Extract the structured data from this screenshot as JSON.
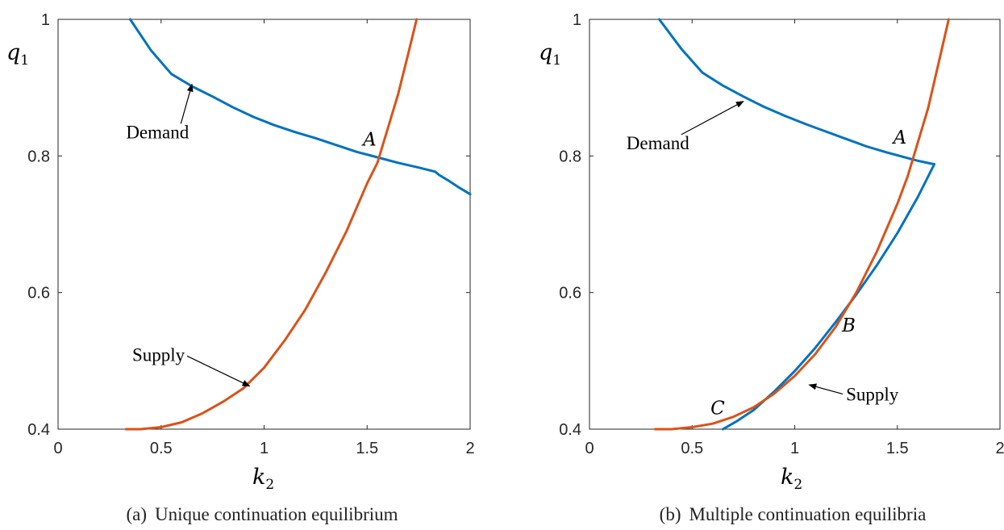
{
  "colors": {
    "demand": "#0072BD",
    "supply": "#D95319",
    "axis": "#262626"
  },
  "chart_data": [
    {
      "type": "line",
      "caption_tag": "(a)",
      "caption": "Unique continuation equilibrium",
      "xlabel_var": "k",
      "xlabel_sub": "2",
      "ylabel_var": "q",
      "ylabel_sub": "1",
      "xlim": [
        0,
        2
      ],
      "ylim": [
        0.4,
        1
      ],
      "xticks": [
        0,
        0.5,
        1,
        1.5,
        2
      ],
      "xtick_labels": [
        "0",
        "0.5",
        "1",
        "1.5",
        "2"
      ],
      "yticks": [
        0.4,
        0.6,
        0.8,
        1
      ],
      "ytick_labels": [
        "0.4",
        "0.6",
        "0.8",
        "1"
      ],
      "series": [
        {
          "key": "demand",
          "x": [
            0.35,
            0.45,
            0.55,
            0.65,
            0.75,
            0.85,
            0.95,
            1.05,
            1.15,
            1.25,
            1.35,
            1.45,
            1.55,
            1.65,
            1.75,
            1.83,
            1.85,
            1.9,
            1.95,
            2.0
          ],
          "y": [
            1.0,
            0.955,
            0.92,
            0.902,
            0.887,
            0.871,
            0.857,
            0.845,
            0.835,
            0.826,
            0.816,
            0.806,
            0.798,
            0.79,
            0.783,
            0.777,
            0.772,
            0.763,
            0.753,
            0.744
          ]
        },
        {
          "key": "supply",
          "x": [
            0.33,
            0.4,
            0.5,
            0.6,
            0.7,
            0.8,
            0.9,
            1.0,
            1.1,
            1.2,
            1.3,
            1.4,
            1.5,
            1.55,
            1.6,
            1.65,
            1.7,
            1.74
          ],
          "y": [
            0.4,
            0.4,
            0.403,
            0.41,
            0.423,
            0.44,
            0.46,
            0.49,
            0.53,
            0.575,
            0.63,
            0.69,
            0.76,
            0.79,
            0.84,
            0.89,
            0.95,
            1.0
          ]
        }
      ],
      "labels": {
        "demand": {
          "text": "Demand",
          "x": 0.33,
          "y": 0.826,
          "arrow_to": [
            0.65,
            0.905
          ]
        },
        "supply": {
          "text": "Supply",
          "x": 0.36,
          "y": 0.5,
          "arrow_to": [
            0.93,
            0.463
          ]
        },
        "points": [
          {
            "text": "A",
            "x": 1.48,
            "y": 0.815
          }
        ]
      }
    },
    {
      "type": "line",
      "caption_tag": "(b)",
      "caption": "Multiple continuation equilibria",
      "xlabel_var": "k",
      "xlabel_sub": "2",
      "ylabel_var": "q",
      "ylabel_sub": "1",
      "xlim": [
        0,
        2
      ],
      "ylim": [
        0.4,
        1
      ],
      "xticks": [
        0,
        0.5,
        1,
        1.5,
        2
      ],
      "xtick_labels": [
        "0",
        "0.5",
        "1",
        "1.5",
        "2"
      ],
      "yticks": [
        0.4,
        0.6,
        0.8,
        1
      ],
      "ytick_labels": [
        "0.4",
        "0.6",
        "0.8",
        "1"
      ],
      "series": [
        {
          "key": "demand",
          "x": [
            0.34,
            0.45,
            0.55,
            0.65,
            0.75,
            0.85,
            0.95,
            1.05,
            1.15,
            1.25,
            1.35,
            1.45,
            1.55,
            1.6,
            1.66,
            1.68,
            1.6,
            1.5,
            1.4,
            1.3,
            1.2,
            1.1,
            1.0,
            0.9,
            0.8,
            0.72,
            0.65
          ],
          "y": [
            1.0,
            0.956,
            0.922,
            0.903,
            0.887,
            0.872,
            0.859,
            0.847,
            0.836,
            0.825,
            0.814,
            0.805,
            0.797,
            0.793,
            0.789,
            0.788,
            0.74,
            0.687,
            0.64,
            0.597,
            0.557,
            0.519,
            0.485,
            0.455,
            0.428,
            0.412,
            0.4
          ]
        },
        {
          "key": "supply",
          "x": [
            0.32,
            0.4,
            0.5,
            0.6,
            0.7,
            0.8,
            0.9,
            1.0,
            1.1,
            1.2,
            1.3,
            1.4,
            1.5,
            1.55,
            1.6,
            1.65,
            1.7,
            1.75
          ],
          "y": [
            0.4,
            0.4,
            0.403,
            0.408,
            0.418,
            0.432,
            0.452,
            0.478,
            0.51,
            0.55,
            0.6,
            0.66,
            0.73,
            0.77,
            0.82,
            0.87,
            0.935,
            1.0
          ]
        }
      ],
      "labels": {
        "demand": {
          "text": "Demand",
          "x": 0.18,
          "y": 0.81,
          "arrow_to": [
            0.75,
            0.88
          ]
        },
        "supply": {
          "text": "Supply",
          "x": 1.25,
          "y": 0.442,
          "arrow_to": [
            1.07,
            0.465
          ]
        },
        "points": [
          {
            "text": "A",
            "x": 1.48,
            "y": 0.818
          },
          {
            "text": "B",
            "x": 1.23,
            "y": 0.543
          },
          {
            "text": "C",
            "x": 0.59,
            "y": 0.422
          }
        ]
      }
    }
  ]
}
